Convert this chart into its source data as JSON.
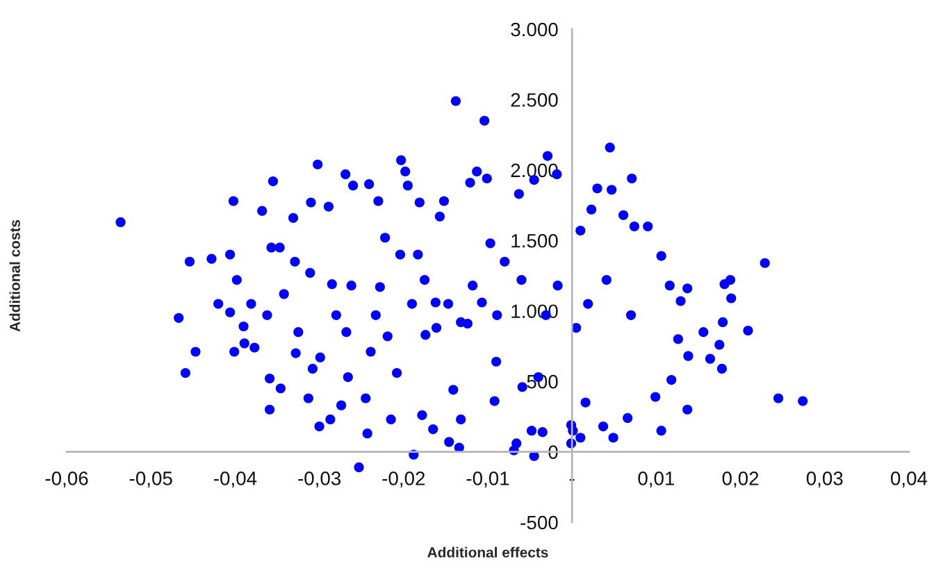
{
  "chart_data": {
    "type": "scatter",
    "xlabel": "Additional effects",
    "ylabel": "Additional costs",
    "color": "#0000ff",
    "marker": "circle",
    "grid": false,
    "xlim": [
      -0.06,
      0.04
    ],
    "ylim": [
      -500,
      3000
    ],
    "xticks": [
      {
        "value": -0.06,
        "label": "-0,06"
      },
      {
        "value": -0.05,
        "label": "-0,05"
      },
      {
        "value": -0.04,
        "label": "-0,04"
      },
      {
        "value": -0.03,
        "label": "-0,03"
      },
      {
        "value": -0.02,
        "label": "-0,02"
      },
      {
        "value": -0.01,
        "label": "-0,01"
      },
      {
        "value": 0,
        "label": "-"
      },
      {
        "value": 0.01,
        "label": "0,01"
      },
      {
        "value": 0.02,
        "label": "0,02"
      },
      {
        "value": 0.03,
        "label": "0,03"
      },
      {
        "value": 0.04,
        "label": "0,04"
      }
    ],
    "yticks": [
      -500,
      0,
      500,
      {
        "value": 1000,
        "label": "1.000"
      },
      {
        "value": 1500,
        "label": "1.500"
      },
      {
        "value": 2000,
        "label": "2.000"
      },
      {
        "value": 2500,
        "label": "2.500"
      },
      {
        "value": 3000,
        "label": "3.000"
      }
    ],
    "x": [
      -0.0536,
      -0.0467,
      -0.0459,
      -0.0454,
      -0.0447,
      -0.0428,
      -0.042,
      -0.0406,
      -0.0402,
      -0.0406,
      -0.0401,
      -0.0398,
      -0.039,
      -0.0381,
      -0.0389,
      -0.0377,
      -0.0368,
      -0.0359,
      -0.0359,
      -0.0355,
      -0.0357,
      -0.0347,
      -0.0346,
      -0.0362,
      -0.0342,
      -0.0331,
      -0.0329,
      -0.0328,
      -0.0325,
      -0.0313,
      -0.031,
      -0.0311,
      -0.0308,
      -0.0302,
      -0.03,
      -0.0299,
      -0.0287,
      -0.0289,
      -0.0285,
      -0.028,
      -0.0274,
      -0.0269,
      -0.0268,
      -0.0266,
      -0.026,
      -0.0253,
      -0.0245,
      -0.0243,
      -0.0241,
      -0.0239,
      -0.023,
      -0.0228,
      -0.0222,
      -0.0219,
      -0.0215,
      -0.0208,
      -0.0203,
      -0.0198,
      -0.0195,
      -0.0188,
      -0.0183,
      -0.0181,
      -0.0178,
      -0.0174,
      -0.0165,
      -0.0162,
      -0.0157,
      -0.0152,
      -0.0146,
      -0.0141,
      -0.0138,
      -0.0134,
      -0.0132,
      -0.0124,
      -0.0121,
      -0.0113,
      -0.0107,
      -0.0104,
      -0.0101,
      -0.0097,
      -0.0092,
      -0.009,
      -0.008,
      -0.0069,
      -0.0066,
      -0.0063,
      -0.0059,
      -0.0048,
      -0.0045,
      -0.0045,
      -0.004,
      -0.0035,
      -0.0029,
      -0.0018,
      -0.0001,
      -0.0001,
      0.0001,
      0.001,
      0.001,
      0.0016,
      0.0023,
      0.003,
      0.0037,
      0.0045,
      0.0049,
      0.0047,
      0.0061,
      0.0066,
      0.0071,
      0.0074,
      0.009,
      0.0099,
      0.0106,
      0.0106,
      0.0116,
      0.0118,
      0.0129,
      0.0126,
      0.0137,
      0.0137,
      0.0138,
      0.0156,
      0.0164,
      0.0175,
      0.0178,
      0.0179,
      0.0181,
      0.0188,
      0.0189,
      0.0209,
      0.0229,
      0.0245,
      0.0274,
      -0.0147,
      -0.0132,
      -0.0161,
      -0.0118,
      -0.0175,
      -0.0204,
      -0.019,
      -0.0089,
      -0.006,
      -0.0031,
      -0.0017,
      0.0019,
      0.0041,
      0.007,
      -0.0233,
      -0.0262,
      0.0005
    ],
    "values": [
      1630,
      950,
      560,
      1350,
      710,
      1370,
      1050,
      1400,
      1780,
      990,
      710,
      1220,
      890,
      1050,
      770,
      740,
      1710,
      520,
      300,
      1920,
      1450,
      1450,
      450,
      970,
      1120,
      1660,
      1350,
      700,
      850,
      380,
      1770,
      1270,
      590,
      2040,
      180,
      670,
      230,
      1740,
      1190,
      970,
      330,
      1970,
      850,
      530,
      1890,
      -110,
      380,
      130,
      1900,
      710,
      1780,
      1170,
      1520,
      820,
      230,
      560,
      2070,
      1990,
      1890,
      -20,
      1400,
      1770,
      260,
      830,
      160,
      1060,
      1670,
      1780,
      70,
      440,
      2490,
      30,
      230,
      910,
      1910,
      1990,
      1060,
      2350,
      1940,
      1480,
      360,
      640,
      1350,
      10,
      60,
      1830,
      460,
      150,
      1930,
      -30,
      530,
      140,
      2100,
      1970,
      190,
      60,
      150,
      100,
      1570,
      350,
      1720,
      1870,
      180,
      2160,
      100,
      1860,
      1680,
      240,
      1940,
      1600,
      1600,
      390,
      150,
      1390,
      1180,
      510,
      1070,
      800,
      1160,
      300,
      680,
      850,
      660,
      760,
      590,
      920,
      1190,
      1220,
      1090,
      860,
      1340,
      380,
      360,
      1050,
      920,
      880,
      1180,
      1220,
      1400,
      1050,
      970,
      1220,
      970,
      1180,
      1050,
      1220,
      970,
      970,
      1180,
      880
    ]
  }
}
